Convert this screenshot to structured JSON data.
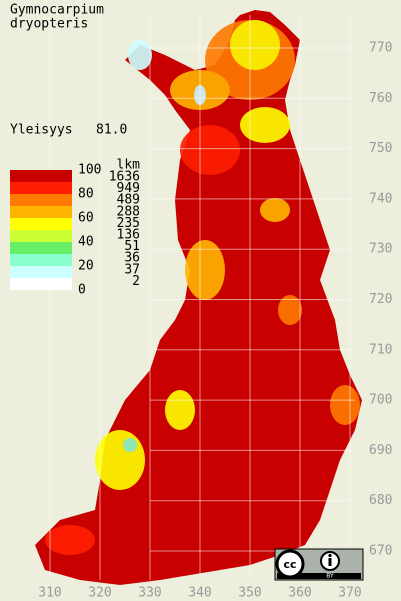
{
  "title": [
    "Gymnocarpium",
    "dryopteris"
  ],
  "frequency": {
    "label": "Yleisyys",
    "value": "81.0"
  },
  "legend": {
    "scale": [
      100,
      80,
      60,
      40,
      20,
      0
    ],
    "count_header": "lkm",
    "counts": [
      1636,
      949,
      489,
      288,
      235,
      136,
      51,
      36,
      37,
      2
    ],
    "colors": [
      "#c80000",
      "#ff1e00",
      "#ff7a00",
      "#ffb400",
      "#ffff00",
      "#ccff33",
      "#66ee66",
      "#88ffcc",
      "#ccffff",
      "#ffffff"
    ]
  },
  "grid": {
    "northing": [
      770,
      760,
      750,
      740,
      730,
      720,
      710,
      700,
      690,
      680,
      670
    ],
    "easting": [
      310,
      320,
      330,
      340,
      350,
      360,
      370
    ]
  },
  "license": "BY"
}
